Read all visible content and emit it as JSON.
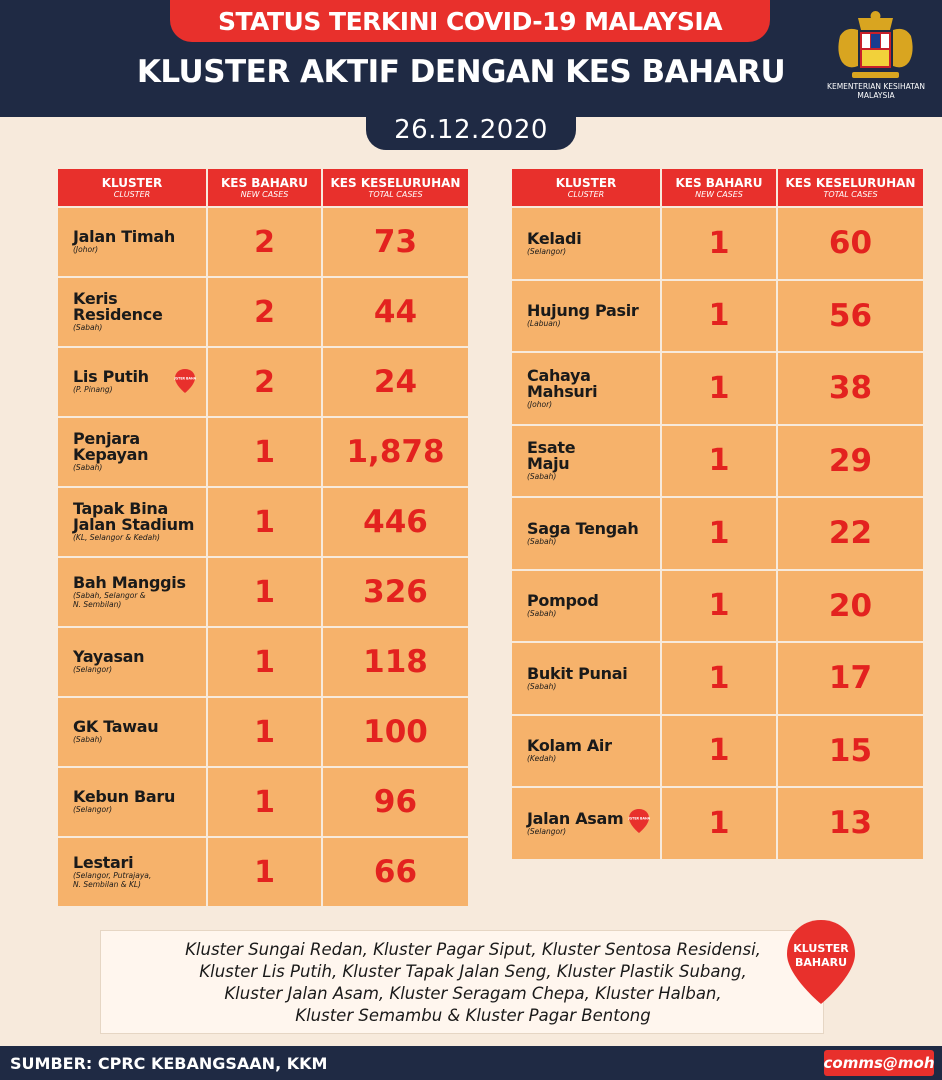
{
  "header": {
    "status_banner": "STATUS TERKINI COVID-19 MALAYSIA",
    "title": "KLUSTER AKTIF DENGAN KES BAHARU",
    "date": "26.12.2020",
    "ministry": "KEMENTERIAN KESIHATAN MALAYSIA"
  },
  "columns": {
    "cluster": "KLUSTER",
    "cluster_en": "CLUSTER",
    "new": "KES BAHARU",
    "new_en": "NEW CASES",
    "total": "KES KESELURUHAN",
    "total_en": "TOTAL CASES"
  },
  "left_rows": [
    {
      "name": "Jalan Timah",
      "state": "(Johor)",
      "new": "2",
      "total": "73"
    },
    {
      "name": "Keris\nResidence",
      "state": "(Sabah)",
      "new": "2",
      "total": "44"
    },
    {
      "name": "Lis Putih",
      "state": "(P. Pinang)",
      "new": "2",
      "total": "24",
      "badge": "KLUSTER BAHARU"
    },
    {
      "name": "Penjara\nKepayan",
      "state": "(Sabah)",
      "new": "1",
      "total": "1,878"
    },
    {
      "name": "Tapak Bina\nJalan Stadium",
      "state": "(KL, Selangor & Kedah)",
      "new": "1",
      "total": "446"
    },
    {
      "name": "Bah Manggis",
      "state": "(Sabah, Selangor &\nN. Sembilan)",
      "new": "1",
      "total": "326"
    },
    {
      "name": "Yayasan",
      "state": "(Selangor)",
      "new": "1",
      "total": "118"
    },
    {
      "name": "GK Tawau",
      "state": "(Sabah)",
      "new": "1",
      "total": "100"
    },
    {
      "name": "Kebun Baru",
      "state": "(Selangor)",
      "new": "1",
      "total": "96"
    },
    {
      "name": "Lestari",
      "state": "(Selangor, Putrajaya,\nN. Sembilan & KL)",
      "new": "1",
      "total": "66"
    }
  ],
  "right_rows": [
    {
      "name": "Keladi",
      "state": "(Selangor)",
      "new": "1",
      "total": "60"
    },
    {
      "name": "Hujung Pasir",
      "state": "(Labuan)",
      "new": "1",
      "total": "56"
    },
    {
      "name": "Cahaya\nMahsuri",
      "state": "(Johor)",
      "new": "1",
      "total": "38"
    },
    {
      "name": "Esate\nMaju",
      "state": "(Sabah)",
      "new": "1",
      "total": "29"
    },
    {
      "name": "Saga Tengah",
      "state": "(Sabah)",
      "new": "1",
      "total": "22"
    },
    {
      "name": "Pompod",
      "state": "(Sabah)",
      "new": "1",
      "total": "20"
    },
    {
      "name": "Bukit Punai",
      "state": "(Sabah)",
      "new": "1",
      "total": "17"
    },
    {
      "name": "Kolam Air",
      "state": "(Kedah)",
      "new": "1",
      "total": "15"
    },
    {
      "name": "Jalan Asam",
      "state": "(Selangor)",
      "new": "1",
      "total": "13",
      "badge": "KLUSTER BAHARU"
    }
  ],
  "new_clusters": {
    "lines": [
      "Kluster Sungai Redan, Kluster Pagar Siput, Kluster Sentosa Residensi,",
      "Kluster Lis Putih, Kluster Tapak Jalan Seng, Kluster Plastik Subang,",
      "Kluster Jalan Asam, Kluster Seragam Chepa, Kluster Halban,",
      "Kluster Semambu & Kluster Pagar Bentong"
    ],
    "badge_line1": "KLUSTER",
    "badge_line2": "BAHARU"
  },
  "footer": {
    "source": "SUMBER: CPRC KEBANGSAAN, KKM",
    "handle": "comms@moh"
  },
  "colors": {
    "navy": "#1f2a44",
    "red": "#e8302c",
    "cell": "#f6b26b",
    "background": "#f7eadc"
  }
}
